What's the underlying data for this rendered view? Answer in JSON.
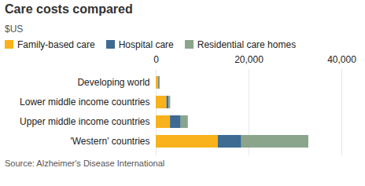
{
  "chart_data": {
    "type": "bar",
    "title": "Care costs compared",
    "subtitle": "$US",
    "orientation": "horizontal",
    "stacked": true,
    "grid": true,
    "legend": "top",
    "categories": [
      "Developing world",
      "Lower middle income countries",
      "Upper middle income countries",
      "'Western' countries"
    ],
    "series": [
      {
        "name": "Family-based care",
        "color": "#f9b21b",
        "values": [
          550,
          2300,
          3070,
          13360
        ]
      },
      {
        "name": "Hospital care",
        "color": "#3d6b92",
        "values": [
          140,
          460,
          2300,
          5070
        ]
      },
      {
        "name": "Residential care homes",
        "color": "#8ba58c",
        "values": [
          180,
          350,
          1540,
          14440
        ]
      }
    ],
    "xlim": [
      0,
      40000
    ],
    "xticks": [
      0,
      {
        "value": 20000,
        "label": "20,000"
      },
      {
        "value": 40000,
        "label": "40,000"
      }
    ],
    "caption": "Source: Alzheimer's Disease International"
  }
}
